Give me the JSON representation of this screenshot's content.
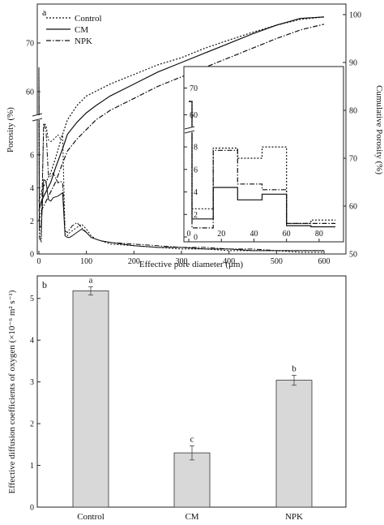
{
  "chart_data": [
    {
      "panel_label": "a",
      "type": "line",
      "xlabel": "Effective pore diameter (μm)",
      "ylabel_left": "Porosity (%)",
      "ylabel_right": "Cumulative Porosity (%)",
      "xlim": [
        0,
        600
      ],
      "x_ticks": [
        "0",
        "100",
        "200",
        "300",
        "400",
        "500",
        "600"
      ],
      "y_left_lower_ticks": [
        "0",
        "2",
        "4",
        "6"
      ],
      "y_left_upper_ticks": [
        "60",
        "70"
      ],
      "y_right_ticks": [
        "50",
        "60",
        "70",
        "80",
        "90",
        "100"
      ],
      "y_right_lim": [
        50,
        100
      ],
      "legend": [
        {
          "name": "Control",
          "style": "dotted"
        },
        {
          "name": "CM",
          "style": "solid"
        },
        {
          "name": "NPK",
          "style": "dash-dot"
        }
      ],
      "series": [
        {
          "name": "Control",
          "style": "dotted",
          "cumulative": {
            "x": [
              0,
              5,
              15,
              25,
              35,
              50,
              60,
              80,
              100,
              120,
              150,
              200,
              250,
              300,
              350,
              400,
              450,
              500,
              550,
              600
            ],
            "y": [
              61,
              63,
              65,
              67,
              70,
              75,
              78,
              81,
              83,
              84,
              85.5,
              87.5,
              89.5,
              91,
              93,
              94.7,
              96.3,
              97.8,
              99,
              99.5
            ]
          },
          "porosity": {
            "x": [
              0,
              1,
              2,
              5,
              10,
              15,
              20,
              25,
              30,
              40,
              45,
              50,
              55,
              60,
              65,
              70,
              80,
              90,
              100,
              110,
              120,
              130,
              150,
              200,
              250,
              300,
              350,
              400,
              450,
              500,
              550,
              600
            ],
            "y": [
              65,
              2.2,
              1.0,
              0.7,
              7.9,
              7.8,
              6.9,
              6.8,
              6.9,
              7.2,
              7.0,
              7.2,
              1.2,
              1.1,
              1.3,
              1.4,
              1.6,
              1.8,
              1.5,
              1.1,
              0.9,
              0.8,
              0.6,
              0.5,
              0.4,
              0.3,
              0.3,
              0.2,
              0.2,
              0.2,
              0.1,
              0.1
            ]
          }
        },
        {
          "name": "CM",
          "style": "solid",
          "cumulative": {
            "x": [
              0,
              5,
              15,
              25,
              35,
              50,
              60,
              80,
              100,
              120,
              150,
              200,
              250,
              300,
              350,
              400,
              450,
              500,
              550,
              600
            ],
            "y": [
              59,
              61,
              63,
              65,
              68,
              72,
              75,
              77.5,
              79.5,
              81,
              83,
              85.5,
              88,
              90,
              92,
              94,
              96,
              97.8,
              99.2,
              99.5
            ]
          },
          "porosity": {
            "x": [
              0,
              1,
              2,
              5,
              10,
              15,
              20,
              25,
              30,
              40,
              45,
              50,
              55,
              60,
              65,
              70,
              80,
              90,
              100,
              110,
              120,
              130,
              150,
              200,
              250,
              300,
              350,
              400,
              450,
              500,
              550,
              600
            ],
            "y": [
              65,
              1.7,
              1.7,
              1.6,
              4.5,
              4.4,
              3.3,
              3.2,
              3.4,
              3.5,
              3.6,
              3.7,
              1.1,
              1.0,
              1.0,
              1.1,
              1.3,
              1.5,
              1.3,
              1.0,
              0.9,
              0.8,
              0.7,
              0.5,
              0.4,
              0.4,
              0.3,
              0.3,
              0.2,
              0.2,
              0.2,
              0.2
            ]
          }
        },
        {
          "name": "NPK",
          "style": "dash-dot",
          "cumulative": {
            "x": [
              0,
              5,
              15,
              25,
              35,
              50,
              60,
              80,
              100,
              120,
              150,
              200,
              250,
              300,
              350,
              400,
              450,
              500,
              550,
              600
            ],
            "y": [
              57,
              59,
              61,
              63,
              65,
              69,
              71.5,
              74,
              76,
              78,
              80,
              82.5,
              85,
              87,
              89,
              91,
              93,
              95,
              96.8,
              98
            ]
          },
          "porosity": {
            "x": [
              0,
              1,
              2,
              5,
              10,
              15,
              20,
              25,
              30,
              40,
              45,
              50,
              55,
              60,
              65,
              70,
              80,
              90,
              100,
              110,
              120,
              130,
              150,
              200,
              250,
              300,
              350,
              400,
              450,
              500,
              550,
              600
            ],
            "y": [
              65,
              1.1,
              0.9,
              1.0,
              7.9,
              7.5,
              4.8,
              4.7,
              4.9,
              4.3,
              4.4,
              4.3,
              1.4,
              1.3,
              1.5,
              1.7,
              1.9,
              1.6,
              1.3,
              1.0,
              0.9,
              0.8,
              0.7,
              0.6,
              0.5,
              0.4,
              0.4,
              0.3,
              0.3,
              0.2,
              0.2,
              0.2
            ]
          }
        }
      ],
      "inset": {
        "xlim": [
          0,
          90
        ],
        "x_ticks": [
          "0",
          "20",
          "40",
          "60",
          "80"
        ],
        "y_lower_ticks": [
          "0",
          "2",
          "4",
          "6",
          "8"
        ],
        "y_upper_ticks": [
          "60",
          "70"
        ],
        "series": [
          {
            "name": "Control",
            "x": [
              0,
              2,
              2,
              15,
              15,
              30,
              30,
              45,
              45,
              60,
              60,
              75,
              75,
              90
            ],
            "y": [
              65,
              65,
              2.5,
              2.5,
              7.9,
              7.9,
              7.0,
              7.0,
              8.0,
              8.0,
              1.2,
              1.2,
              1.5,
              1.5
            ]
          },
          {
            "name": "CM",
            "x": [
              0,
              2,
              2,
              15,
              15,
              30,
              30,
              45,
              45,
              60,
              60,
              75,
              75,
              90
            ],
            "y": [
              65,
              65,
              1.6,
              1.6,
              4.4,
              4.4,
              3.3,
              3.3,
              3.8,
              3.8,
              1.0,
              1.0,
              0.9,
              0.9
            ]
          },
          {
            "name": "NPK",
            "x": [
              0,
              2,
              2,
              15,
              15,
              30,
              30,
              45,
              45,
              60,
              60,
              75,
              75,
              90
            ],
            "y": [
              65,
              65,
              0.8,
              0.8,
              7.7,
              7.7,
              4.7,
              4.7,
              4.2,
              4.2,
              1.2,
              1.2,
              1.2,
              1.2
            ]
          }
        ]
      }
    },
    {
      "panel_label": "b",
      "type": "bar",
      "categories": [
        "Control",
        "CM",
        "NPK"
      ],
      "values": [
        5.18,
        1.3,
        3.04
      ],
      "errors": [
        0.1,
        0.17,
        0.12
      ],
      "letters": [
        "a",
        "c",
        "b"
      ],
      "ylabel": "Effective diffusion coefficients of oxygen (×10⁻⁶ m² s⁻¹)",
      "ylim": [
        0,
        5.5
      ],
      "y_ticks": [
        "0",
        "1",
        "2",
        "3",
        "4",
        "5"
      ],
      "bar_color": "#d8d8d8"
    }
  ]
}
